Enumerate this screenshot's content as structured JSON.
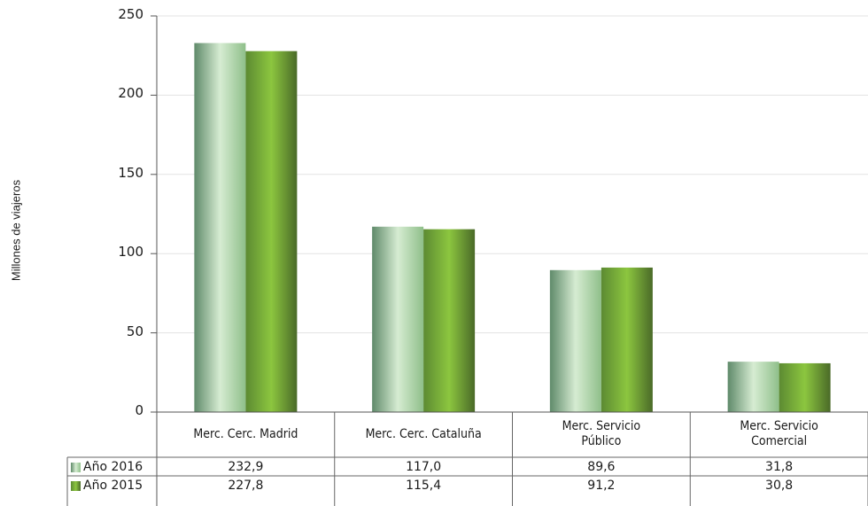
{
  "chart_data": {
    "type": "bar",
    "categories": [
      "Merc. Cerc. Madrid",
      "Merc. Cerc. Cataluña",
      "Merc. Servicio Público",
      "Merc. Servicio Comercial"
    ],
    "category_lines": [
      [
        "Merc. Cerc. Madrid"
      ],
      [
        "Merc. Cerc. Cataluña"
      ],
      [
        "Merc. Servicio",
        "Público"
      ],
      [
        "Merc. Servicio",
        "Comercial"
      ]
    ],
    "series": [
      {
        "name": "Año 2016",
        "values": [
          232.9,
          117.0,
          89.6,
          31.8
        ],
        "labels": [
          "232,9",
          "117,0",
          "89,6",
          "31,8"
        ],
        "color": "#a8d5a0"
      },
      {
        "name": "Año 2015",
        "values": [
          227.8,
          115.4,
          91.2,
          30.8
        ],
        "labels": [
          "227,8",
          "115,4",
          "91,2",
          "30,8"
        ],
        "color": "#7cc242"
      }
    ],
    "ylabel": "Millones de viajeros",
    "xlabel": "",
    "title": "",
    "ylim": [
      0,
      250
    ],
    "yticks": [
      "0",
      "50",
      "100",
      "150",
      "200",
      "250"
    ],
    "grid": true,
    "legend": "data-table-left"
  }
}
